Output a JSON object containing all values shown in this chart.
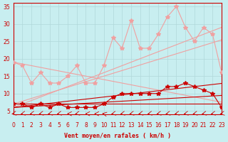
{
  "x": [
    0,
    1,
    2,
    3,
    4,
    5,
    6,
    7,
    8,
    9,
    10,
    11,
    12,
    13,
    14,
    15,
    16,
    17,
    18,
    19,
    20,
    21,
    22,
    23
  ],
  "series_light_pink_scatter": [
    19,
    18,
    13,
    16,
    13,
    13,
    15,
    18,
    13,
    13,
    18,
    26,
    23,
    31,
    23,
    23,
    27,
    32,
    35,
    29,
    25,
    29,
    27,
    16
  ],
  "series_light_pink_trend1": [
    19,
    18.5,
    18,
    17.5,
    17,
    16.5,
    16,
    15.5,
    15,
    14.5,
    14,
    13.5,
    13,
    12.5,
    12,
    11.5,
    11,
    10.5,
    10,
    9.5,
    9,
    8.5,
    8,
    7.5
  ],
  "series_light_pink_trend2": [
    6,
    7,
    8,
    9,
    10,
    11,
    12,
    13,
    14,
    15,
    16,
    17,
    18,
    19,
    20,
    21,
    22,
    23,
    24,
    25,
    26,
    27,
    28,
    29
  ],
  "series_light_pink_trend3": [
    7,
    7.8,
    8.6,
    9.4,
    10.2,
    11,
    11.8,
    12.6,
    13.4,
    14.2,
    15,
    15.8,
    16.6,
    17.4,
    18.2,
    19,
    19.8,
    20.6,
    21.4,
    22.2,
    23,
    23.8,
    24.6,
    25.4
  ],
  "series_red_scatter": [
    7,
    7,
    6,
    7,
    6,
    7,
    6,
    6,
    6,
    6,
    7,
    9,
    10,
    10,
    10,
    10,
    10,
    12,
    12,
    13,
    12,
    11,
    10,
    6
  ],
  "series_red_trend1": [
    7,
    7,
    7,
    7,
    7,
    7,
    7,
    7,
    7,
    7,
    7,
    7,
    7,
    7,
    7,
    7,
    7,
    7,
    7,
    7,
    7,
    7,
    7,
    7
  ],
  "series_red_trend2": [
    6,
    6.3,
    6.6,
    6.9,
    7.2,
    7.5,
    7.8,
    8.1,
    8.4,
    8.7,
    9,
    9.3,
    9.6,
    9.9,
    10.2,
    10.5,
    10.8,
    11.1,
    11.4,
    11.7,
    12,
    12.3,
    12.6,
    12.9
  ],
  "series_red_trend3": [
    6,
    6.15,
    6.3,
    6.45,
    6.6,
    6.75,
    6.9,
    7.05,
    7.2,
    7.35,
    7.5,
    7.65,
    7.8,
    7.95,
    8.1,
    8.25,
    8.4,
    8.55,
    8.7,
    8.85,
    9,
    9.15,
    9.3,
    9.45
  ],
  "xlim": [
    0,
    23
  ],
  "ylim": [
    4,
    36
  ],
  "yticks": [
    5,
    10,
    15,
    20,
    25,
    30,
    35
  ],
  "xticks": [
    0,
    1,
    2,
    3,
    4,
    5,
    6,
    7,
    8,
    9,
    10,
    11,
    12,
    13,
    14,
    15,
    16,
    17,
    18,
    19,
    20,
    21,
    22,
    23
  ],
  "xlabel": "Vent moyen/en rafales ( km/h )",
  "bg_color": "#c8eef0",
  "grid_color": "#b0d8da",
  "light_pink": "#f0a0a0",
  "dark_red": "#cc0000",
  "arrow_color": "#cc0000"
}
